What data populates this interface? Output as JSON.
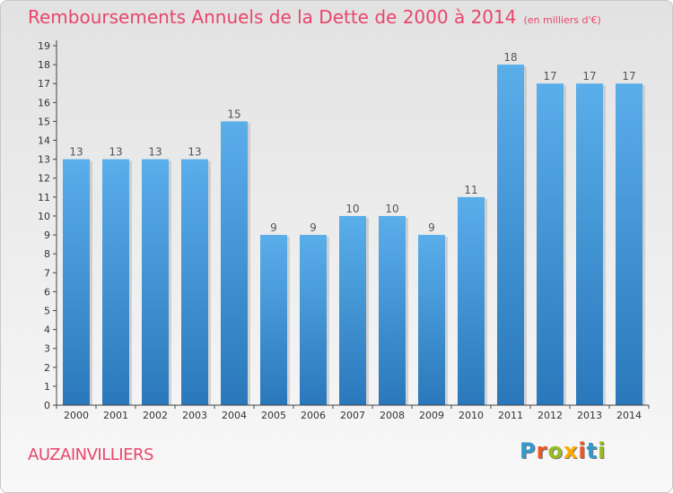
{
  "header": {
    "title": "Remboursements Annuels de la Dette de 2000 à 2014",
    "subtitle": "(en milliers d'€)"
  },
  "footer": {
    "city": "AUZAINVILLIERS",
    "logo": "Proxiti"
  },
  "colors": {
    "accent": "#e8456b",
    "bar_top": "#5aaeea",
    "bar_bottom": "#2a78bb",
    "logo_letters": [
      "#3399cc",
      "#ee5522",
      "#99bb22",
      "#ffaa00",
      "#ee5522",
      "#3399cc",
      "#99bb22"
    ]
  },
  "chart_data": {
    "type": "bar",
    "title": "Remboursements Annuels de la Dette de 2000 à 2014",
    "subtitle": "(en milliers d'€)",
    "categories": [
      "2000",
      "2001",
      "2002",
      "2003",
      "2004",
      "2005",
      "2006",
      "2007",
      "2008",
      "2009",
      "2010",
      "2011",
      "2012",
      "2013",
      "2014"
    ],
    "values": [
      13,
      13,
      13,
      13,
      15,
      9,
      9,
      10,
      10,
      9,
      11,
      18,
      17,
      17,
      17
    ],
    "ylim": [
      0,
      19
    ],
    "yticks": [
      0,
      1,
      2,
      3,
      4,
      5,
      6,
      7,
      8,
      9,
      10,
      11,
      12,
      13,
      14,
      15,
      16,
      17,
      18,
      19
    ],
    "xlabel": "",
    "ylabel": "",
    "grid": false,
    "data_labels": true
  }
}
